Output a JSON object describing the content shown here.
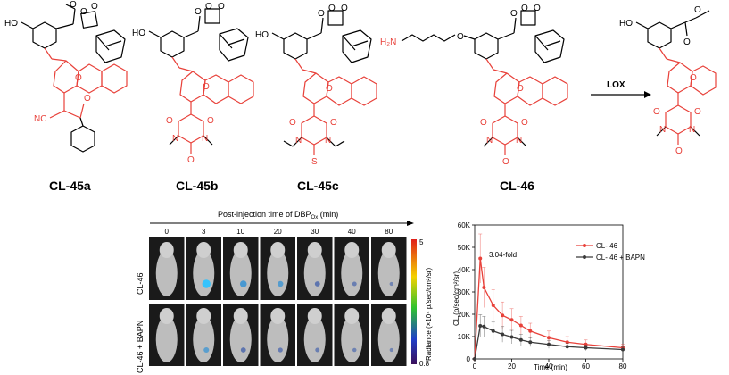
{
  "compounds": [
    {
      "label": "CL-45a",
      "atoms": [
        "HO",
        "O",
        "O",
        "O",
        "NC",
        "O",
        "O"
      ]
    },
    {
      "label": "CL-45b",
      "atoms": [
        "HO",
        "O",
        "O",
        "O",
        "O",
        "O",
        "O",
        "N",
        "N",
        "O"
      ]
    },
    {
      "label": "CL-45c",
      "atoms": [
        "HO",
        "O",
        "O",
        "O",
        "O",
        "O",
        "O",
        "N",
        "N",
        "S"
      ]
    },
    {
      "label": "CL-46",
      "atoms": [
        "H₂N",
        "O",
        "O",
        "O",
        "O",
        "O",
        "O",
        "O",
        "N",
        "N",
        "O"
      ]
    },
    {
      "label": "",
      "atoms": [
        "HO",
        "O",
        "O",
        "O",
        "O",
        "O",
        "N",
        "N",
        "O"
      ]
    }
  ],
  "reaction": {
    "arrow_label": "LOX"
  },
  "imaging": {
    "timeline_label": "Post-injection time of DBP",
    "timeline_sub": "Ox",
    "timeline_unit": " (min)",
    "timepoints": [
      "0",
      "3",
      "10",
      "20",
      "30",
      "40",
      "80"
    ],
    "rows": [
      {
        "label": "CL-46",
        "signal": [
          0,
          0.9,
          0.6,
          0.4,
          0.3,
          0.15,
          0.05
        ]
      },
      {
        "label": "CL-46 + BAPN",
        "signal": [
          0,
          0.35,
          0.3,
          0.2,
          0.15,
          0.08,
          0.03
        ]
      }
    ],
    "colorbar": {
      "max": "5",
      "min": "0.8",
      "label": "Radiance (×10⁴ p/sec/cm²/sr)"
    }
  },
  "chart_data": {
    "type": "line",
    "xlabel": "Time (min)",
    "ylabel": "CL (p/sec/cm²/sr)",
    "xlim": [
      0,
      80
    ],
    "ylim": [
      0,
      60000
    ],
    "xticks": [
      "0",
      "20",
      "40",
      "60",
      "80"
    ],
    "yticks": [
      "0",
      "10K",
      "20K",
      "30K",
      "40K",
      "50K",
      "60K"
    ],
    "legend": "top-right",
    "annotation": "3.04-fold",
    "series": [
      {
        "name": "CL- 46",
        "color": "#e8413a",
        "x": [
          0,
          3,
          5,
          10,
          15,
          20,
          25,
          30,
          40,
          50,
          60,
          80
        ],
        "y": [
          0,
          45000,
          32000,
          24000,
          19500,
          17500,
          15000,
          12500,
          9500,
          7500,
          6500,
          5000
        ],
        "err": [
          0,
          11000,
          9000,
          7000,
          6000,
          5000,
          4000,
          3500,
          3000,
          2500,
          2000,
          1500
        ]
      },
      {
        "name": "CL- 46 + BAPN",
        "color": "#3a3a3a",
        "x": [
          0,
          3,
          5,
          10,
          15,
          20,
          25,
          30,
          40,
          50,
          60,
          80
        ],
        "y": [
          0,
          14800,
          14500,
          12500,
          11000,
          9800,
          8500,
          7500,
          6500,
          5500,
          5000,
          4200
        ],
        "err": [
          0,
          5000,
          4500,
          4000,
          3500,
          3000,
          2500,
          2000,
          1800,
          1500,
          1300,
          1200
        ]
      }
    ]
  }
}
